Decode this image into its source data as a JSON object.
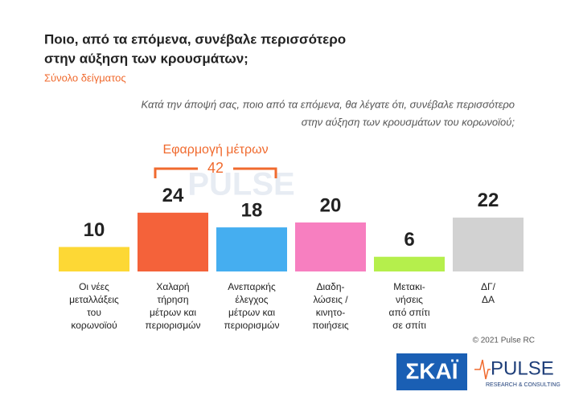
{
  "chart_data": {
    "type": "bar",
    "title": [
      "Ποιο, από τα επόμενα, συνέβαλε περισσότερο",
      "στην αύξηση των κρουσμάτων;"
    ],
    "subtitle": "Σύνολο δείγματος",
    "question": [
      "Κατά την άποψή σας, ποιο από τα επόμενα, θα λέγατε ότι, συνέβαλε περισσότερο",
      "στην αύξηση των κρουσμάτων του κορωνοϊού;"
    ],
    "categories": [
      [
        "Οι νέες",
        "μεταλλάξεις",
        "του",
        "κορωνοϊού"
      ],
      [
        "Χαλαρή",
        "τήρηση",
        "μέτρων και",
        "περιορισμών"
      ],
      [
        "Ανεπαρκής",
        "έλεγχος",
        "μέτρων και",
        "περιορισμών"
      ],
      [
        "Διαδη-",
        "λώσεις /",
        "κινητο-",
        "ποιήσεις"
      ],
      [
        "Μετακι-",
        "νήσεις",
        "από σπίτι",
        "σε σπίτι"
      ],
      [
        "ΔΓ/",
        "ΔΑ"
      ]
    ],
    "values": [
      10,
      24,
      18,
      20,
      6,
      22
    ],
    "colors": [
      "#fdd835",
      "#f4623a",
      "#45aef0",
      "#f77fc0",
      "#b5ef4c",
      "#d2d2d2"
    ],
    "annotation": {
      "text": "Εφαρμογή μέτρων",
      "value": 42,
      "categories": [
        1,
        2
      ],
      "color": "#f06a2e"
    },
    "copyright": "© 2021 Pulse RC",
    "logos": {
      "skai": "ΣΚΑΪ",
      "pulse": "PULSE",
      "pulse_sub": "RESEARCH & CONSULTING"
    }
  }
}
